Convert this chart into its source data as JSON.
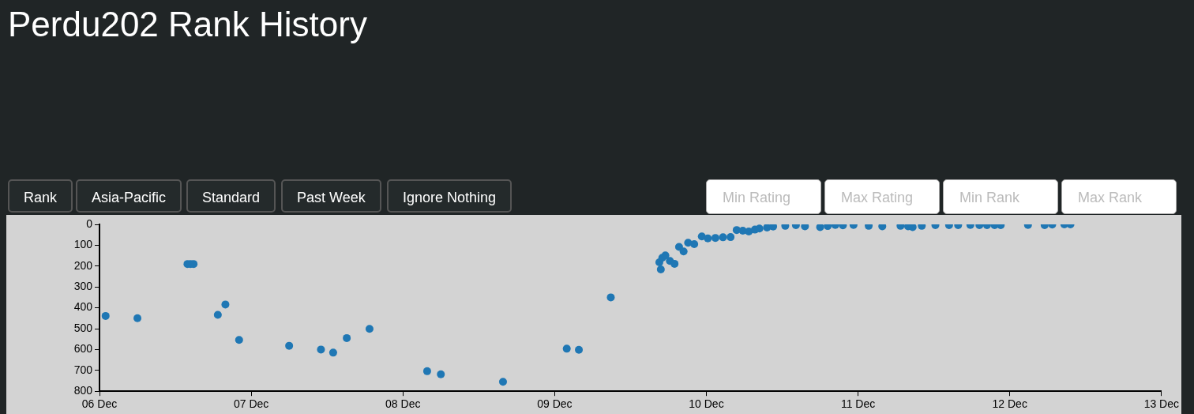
{
  "chart_data": {
    "type": "scatter",
    "title": "Perdu202 Rank History",
    "annotations": [
      "Rank",
      "Asia-Pacific",
      "Standard",
      "Past Week",
      "Ignore Nothing",
      "Min Rating",
      "Max Rating",
      "Min Rank",
      "Max Rank"
    ],
    "xlim": [
      "--12-06",
      "--12-13"
    ],
    "xticks": [
      {
        "value": "--12-06",
        "label": "06 Dec"
      },
      {
        "value": "--12-07",
        "label": "07 Dec"
      },
      {
        "value": "--12-08",
        "label": "08 Dec"
      },
      {
        "value": "--12-09",
        "label": "09 Dec"
      },
      {
        "value": "--12-10",
        "label": "10 Dec"
      },
      {
        "value": "--12-11",
        "label": "11 Dec"
      },
      {
        "value": "--12-12",
        "label": "12 Dec"
      },
      {
        "value": "--12-13",
        "label": "13 Dec"
      }
    ],
    "ylim": [
      800,
      0
    ],
    "yticks": [
      0,
      100,
      200,
      300,
      400,
      500,
      600,
      700,
      800
    ],
    "grid": false,
    "marker": "circle",
    "series": [
      {
        "color": "#1f77b4",
        "x": [
          "--12-06T00:58",
          "--12-06T06:00",
          "--12-06T13:55",
          "--12-06T14:24",
          "--12-06T14:53",
          "--12-06T18:43",
          "--12-06T19:55",
          "--12-06T22:05",
          "--12-07T06:00",
          "--12-07T11:02",
          "--12-07T12:58",
          "--12-07T15:07",
          "--12-07T18:43",
          "--12-08T03:50",
          "--12-08T06:00",
          "--12-08T15:50",
          "--12-09T01:55",
          "--12-09T03:50",
          "--12-09T08:53",
          "--12-09T16:34",
          "--12-09T16:48",
          "--12-09T17:02",
          "--12-09T17:31",
          "--12-09T18:14",
          "--12-09T18:58",
          "--12-09T19:41",
          "--12-09T20:24",
          "--12-09T21:07",
          "--12-09T22:05",
          "--12-09T23:17",
          "--12-10T00:14",
          "--12-10T01:26",
          "--12-10T02:38",
          "--12-10T03:50",
          "--12-10T04:48",
          "--12-10T05:46",
          "--12-10T06:43",
          "--12-10T07:41",
          "--12-10T08:24",
          "--12-10T09:36",
          "--12-10T10:34",
          "--12-10T12:29",
          "--12-10T14:10",
          "--12-10T15:36",
          "--12-10T18:00",
          "--12-10T19:12",
          "--12-10T20:24",
          "--12-10T21:36",
          "--12-10T23:17",
          "--12-11T01:41",
          "--12-11T03:50",
          "--12-11T06:43",
          "--12-11T07:55",
          "--12-11T08:38",
          "--12-11T10:05",
          "--12-11T12:14",
          "--12-11T14:24",
          "--12-11T15:50",
          "--12-11T17:46",
          "--12-11T19:12",
          "--12-11T20:24",
          "--12-11T21:36",
          "--12-11T22:34",
          "--12-12T02:53",
          "--12-12T05:31",
          "--12-12T06:43",
          "--12-12T08:38",
          "--12-12T09:36"
        ],
        "values": [
          439,
          450,
          190,
          190,
          190,
          434,
          384,
          554,
          582,
          600,
          615,
          545,
          501,
          704,
          719,
          755,
          596,
          601,
          350,
          182,
          216,
          160,
          149,
          175,
          189,
          108,
          130,
          88,
          95,
          58,
          67,
          65,
          62,
          61,
          27,
          30,
          34,
          25,
          20,
          15,
          10,
          7,
          4,
          9,
          13,
          8,
          3,
          5,
          3,
          7,
          9,
          7,
          9,
          13,
          7,
          4,
          4,
          4,
          3,
          4,
          4,
          4,
          4,
          3,
          4,
          1,
          0,
          0
        ]
      }
    ]
  }
}
